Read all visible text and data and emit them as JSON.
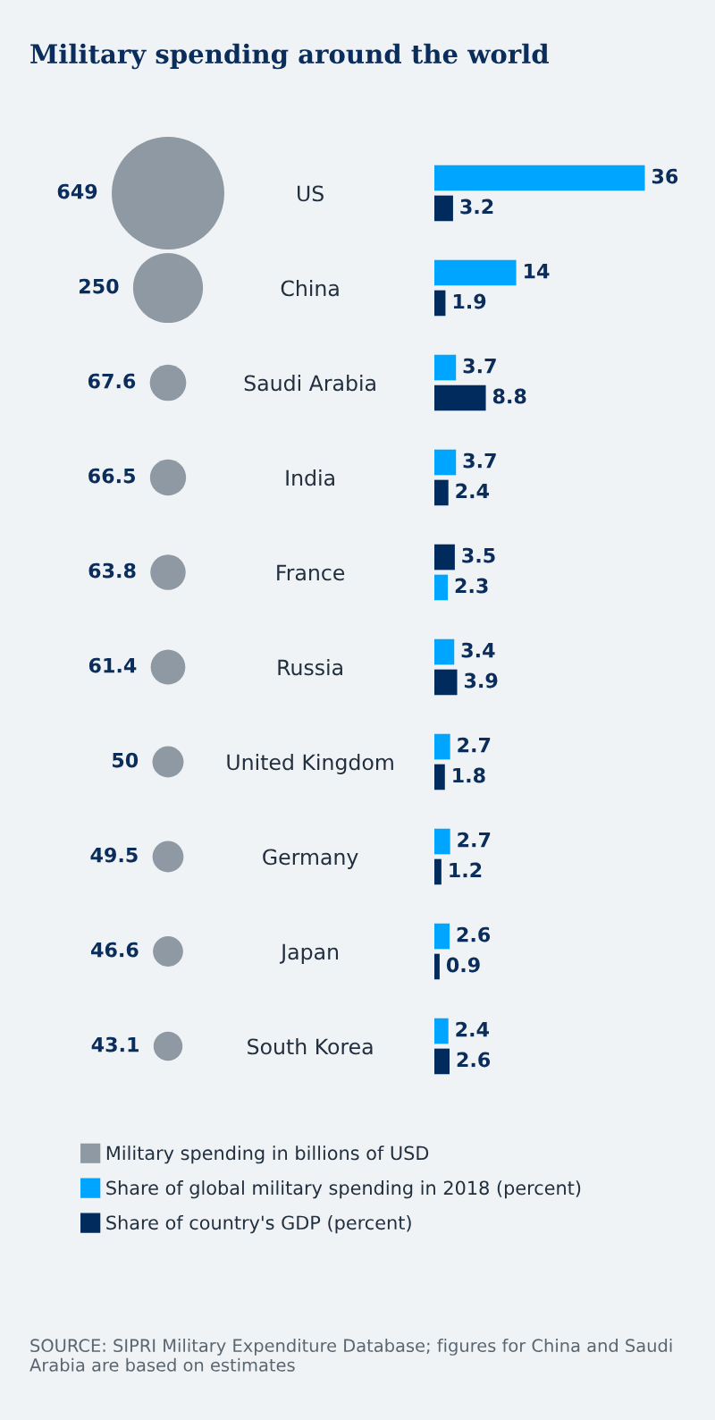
{
  "chart_data": [
    {
      "type": "other",
      "title": "Military spending around the world",
      "categories": [
        null,
        null,
        null,
        null,
        null,
        null,
        null,
        null,
        null,
        null
      ],
      "legend": "bottom",
      "data_labels": true,
      "series": [
        {
          "name": "Military spending in billions of USD",
          "color": "#8f99a3",
          "values": [
            649,
            250,
            67.6,
            66.5,
            63.8,
            61.4,
            50,
            49.5,
            46.6,
            43.1
          ]
        }
      ]
    },
    {
      "type": "bar",
      "orientation": "horizontal",
      "categories": [
        "US",
        "China",
        "Saudi Arabia",
        "India",
        "France",
        "Russia",
        "United Kingdom",
        "Germany",
        "Japan",
        "South Korea"
      ],
      "xlim": [
        0,
        48
      ],
      "tick_labels": "y",
      "data_labels": true,
      "legend": "bottom",
      "annotations": [
        "SOURCE: SIPRI Military Expenditure Database; figures for China and Saudi Arabia are based on estimates"
      ],
      "series": [
        {
          "name": "Share of global military spending in 2018 (percent)",
          "color": "#00a5ff",
          "values": [
            36,
            14,
            3.7,
            3.7,
            3.5,
            3.4,
            2.7,
            2.7,
            2.6,
            2.4
          ],
          "colors": [
            "#00a5ff",
            "#00a5ff",
            "#00a5ff",
            "#00a5ff",
            "#002b5c",
            "#00a5ff",
            "#00a5ff",
            "#00a5ff",
            "#00a5ff",
            "#00a5ff"
          ]
        },
        {
          "name": "Share of country's GDP (percent)",
          "color": "#002b5c",
          "values": [
            3.2,
            1.9,
            8.8,
            2.4,
            2.3,
            3.9,
            1.8,
            1.2,
            0.9,
            2.6
          ],
          "colors": [
            "#002b5c",
            "#002b5c",
            "#002b5c",
            "#002b5c",
            "#00a5ff",
            "#002b5c",
            "#002b5c",
            "#002b5c",
            "#002b5c",
            "#002b5c"
          ]
        }
      ]
    }
  ]
}
